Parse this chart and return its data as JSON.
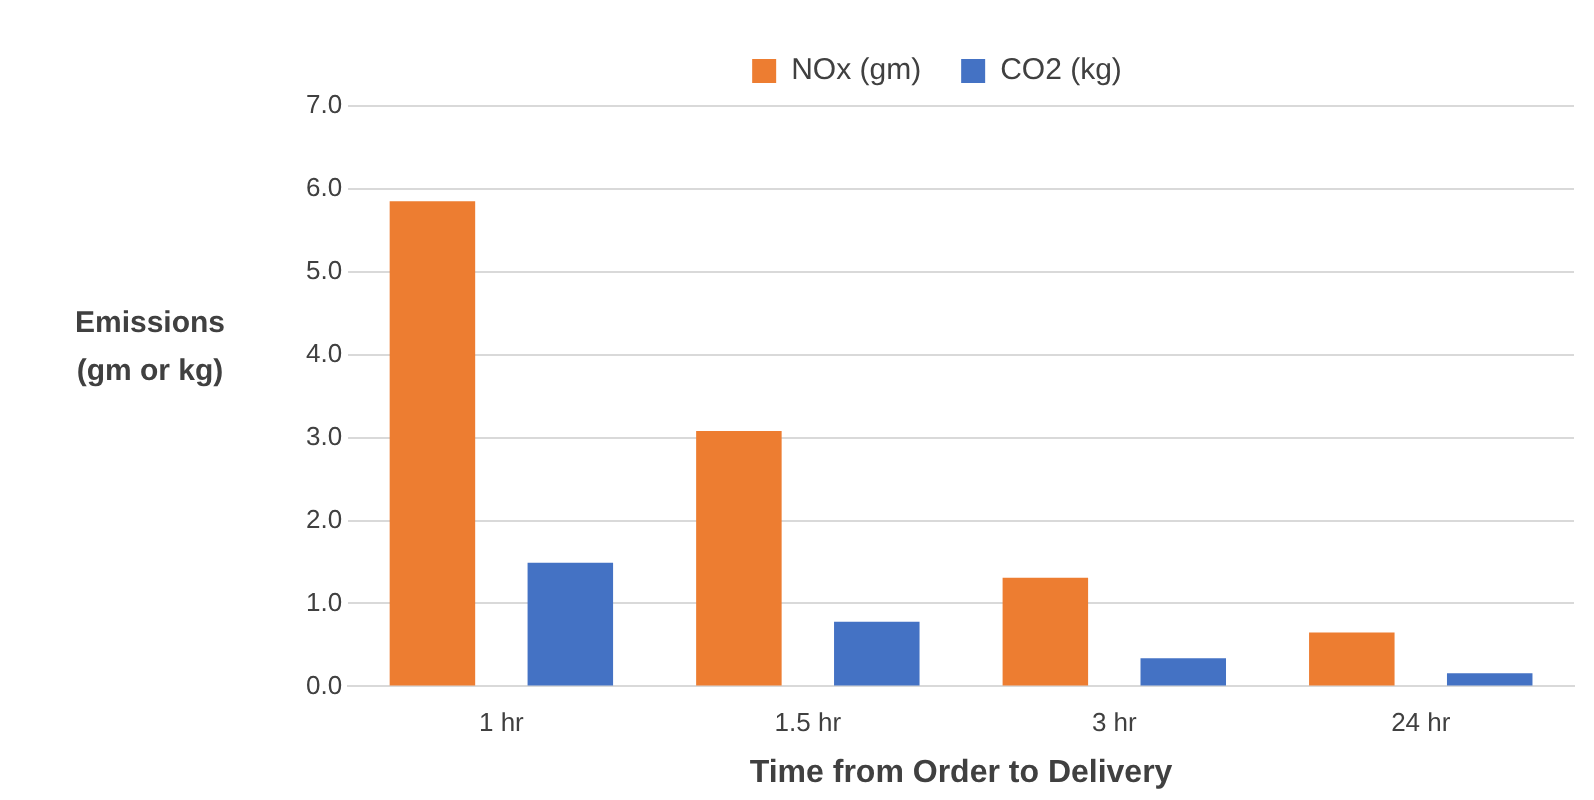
{
  "chart_data": {
    "type": "bar",
    "xlabel": "Time from Order to Delivery",
    "ylabel": "Emissions (gm or kg)",
    "categories": [
      "1 hr",
      "1.5 hr",
      "3 hr",
      "24 hr"
    ],
    "series": [
      {
        "name": "NOx (gm)",
        "color": "#ed7d31",
        "values": [
          5.85,
          3.08,
          1.31,
          0.65
        ]
      },
      {
        "name": "CO2 (kg)",
        "color": "#4472c4",
        "values": [
          1.49,
          0.78,
          0.34,
          0.16
        ]
      }
    ],
    "ylim": [
      0,
      7
    ],
    "yticks": [
      {
        "value": 0,
        "label": "0.0"
      },
      {
        "value": 1,
        "label": "1.0"
      },
      {
        "value": 2,
        "label": "2.0"
      },
      {
        "value": 3,
        "label": "3.0"
      },
      {
        "value": 4,
        "label": "4.0"
      },
      {
        "value": 5,
        "label": "5.0"
      },
      {
        "value": 6,
        "label": "6.0"
      },
      {
        "value": 7,
        "label": "7.0"
      }
    ],
    "grid": "y",
    "legend": "top"
  }
}
